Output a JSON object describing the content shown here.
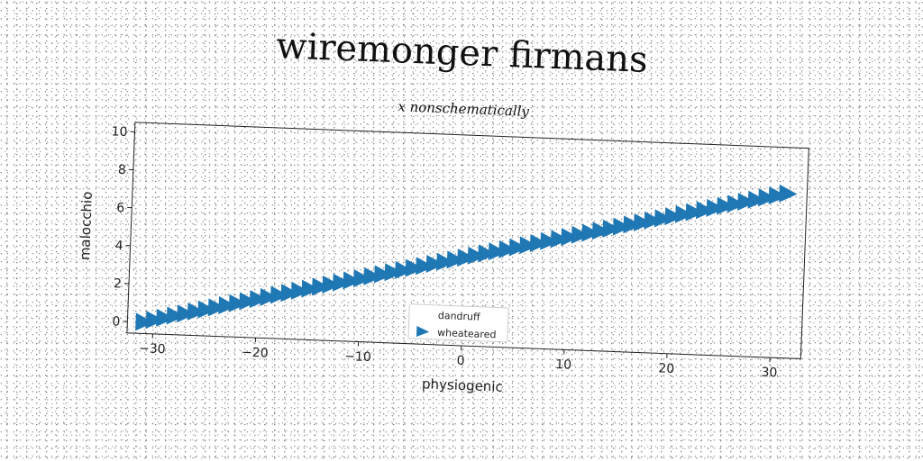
{
  "chart_data": {
    "type": "scatter",
    "title": "wiremonger firmans",
    "subtitle": "x nonschematically",
    "xlabel": "physiogenic",
    "ylabel": "malocchio",
    "xlim": [
      -32.5,
      33
    ],
    "ylim": [
      -0.6,
      10.5
    ],
    "xticks": [
      -30,
      -20,
      -10,
      0,
      10,
      20,
      30
    ],
    "yticks": [
      0,
      2,
      4,
      6,
      8,
      10
    ],
    "grid": false,
    "legend_position": "bottom-center",
    "marker": "triangle-right",
    "marker_color": "#1f77b4",
    "series": [
      {
        "name": "dandruff",
        "x": [
          -31,
          -30,
          -29,
          -28,
          -27,
          -26,
          -25,
          -24,
          -23,
          -22,
          -21,
          -20,
          -19,
          -18,
          -17,
          -16,
          -15,
          -14,
          -13,
          -12,
          -11,
          -10,
          -9,
          -8,
          -7,
          -6,
          -5,
          -4,
          -3,
          -2,
          -1,
          0,
          1,
          2,
          3,
          4,
          5,
          6,
          7,
          8,
          9,
          10,
          11,
          12,
          13,
          14,
          15,
          16,
          17,
          18,
          19,
          20,
          21,
          22,
          23,
          24,
          25,
          26,
          27,
          28,
          29,
          30,
          31
        ],
        "y": [
          0.0,
          0.13,
          0.26,
          0.39,
          0.52,
          0.65,
          0.78,
          0.91,
          1.04,
          1.17,
          1.3,
          1.43,
          1.56,
          1.69,
          1.82,
          1.95,
          2.08,
          2.21,
          2.34,
          2.47,
          2.6,
          2.73,
          2.86,
          2.99,
          3.12,
          3.25,
          3.38,
          3.51,
          3.64,
          3.77,
          3.9,
          4.03,
          4.16,
          4.29,
          4.42,
          4.55,
          4.68,
          4.81,
          4.94,
          5.07,
          5.2,
          5.33,
          5.46,
          5.59,
          5.72,
          5.85,
          5.98,
          6.11,
          6.24,
          6.37,
          6.5,
          6.63,
          6.76,
          6.89,
          7.02,
          7.15,
          7.28,
          7.41,
          7.54,
          7.67,
          7.8,
          7.93,
          8.06
        ],
        "marker": "none"
      },
      {
        "name": "wheateared",
        "x": [
          -31,
          -30,
          -29,
          -28,
          -27,
          -26,
          -25,
          -24,
          -23,
          -22,
          -21,
          -20,
          -19,
          -18,
          -17,
          -16,
          -15,
          -14,
          -13,
          -12,
          -11,
          -10,
          -9,
          -8,
          -7,
          -6,
          -5,
          -4,
          -3,
          -2,
          -1,
          0,
          1,
          2,
          3,
          4,
          5,
          6,
          7,
          8,
          9,
          10,
          11,
          12,
          13,
          14,
          15,
          16,
          17,
          18,
          19,
          20,
          21,
          22,
          23,
          24,
          25,
          26,
          27,
          28,
          29,
          30,
          31
        ],
        "y": [
          0.0,
          0.13,
          0.26,
          0.39,
          0.52,
          0.65,
          0.78,
          0.91,
          1.04,
          1.17,
          1.3,
          1.43,
          1.56,
          1.69,
          1.82,
          1.95,
          2.08,
          2.21,
          2.34,
          2.47,
          2.6,
          2.73,
          2.86,
          2.99,
          3.12,
          3.25,
          3.38,
          3.51,
          3.64,
          3.77,
          3.9,
          4.03,
          4.16,
          4.29,
          4.42,
          4.55,
          4.68,
          4.81,
          4.94,
          5.07,
          5.2,
          5.33,
          5.46,
          5.59,
          5.72,
          5.85,
          5.98,
          6.11,
          6.24,
          6.37,
          6.5,
          6.63,
          6.76,
          6.89,
          7.02,
          7.15,
          7.28,
          7.41,
          7.54,
          7.67,
          7.8,
          7.93,
          8.06
        ],
        "marker": "triangle-right"
      }
    ]
  }
}
